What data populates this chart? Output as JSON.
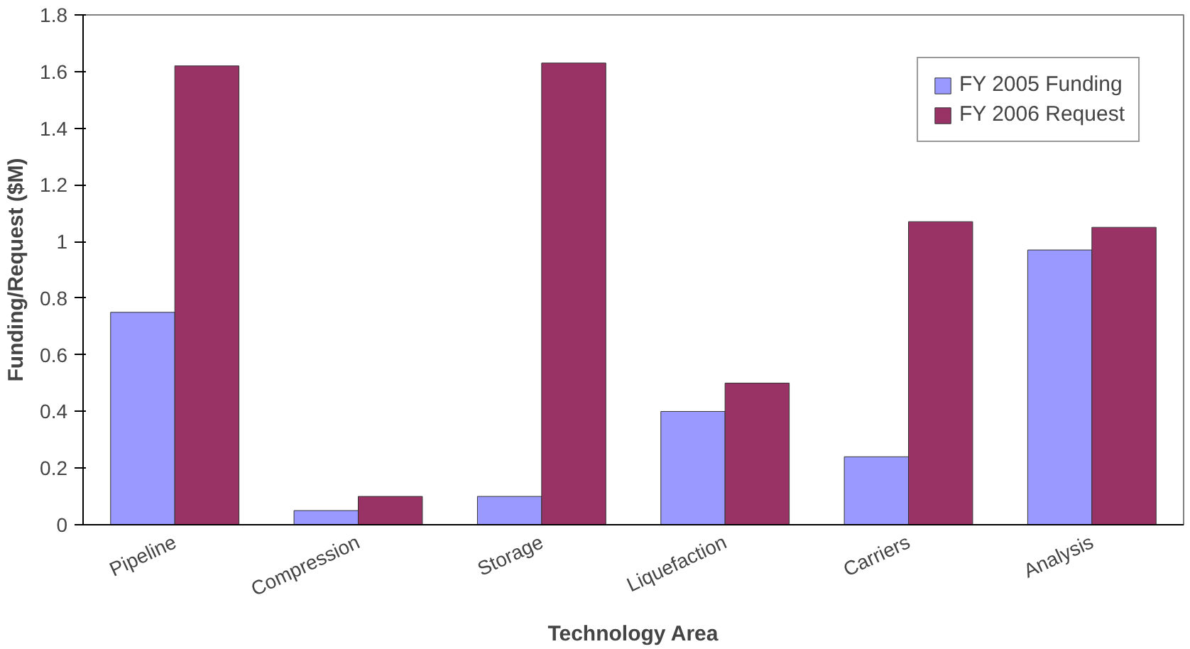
{
  "chart_data": {
    "type": "bar",
    "xlabel": "Technology Area",
    "ylabel": "Funding/Request ($M)",
    "categories": [
      "Pipeline",
      "Compression",
      "Storage",
      "Liquefaction",
      "Carriers",
      "Analysis"
    ],
    "series": [
      {
        "name": "FY 2005 Funding",
        "color": "#9999ff",
        "values": [
          0.75,
          0.05,
          0.1,
          0.4,
          0.24,
          0.97
        ]
      },
      {
        "name": "FY 2006 Request",
        "color": "#993366",
        "values": [
          1.62,
          0.1,
          1.63,
          0.5,
          1.07,
          1.05
        ]
      }
    ],
    "ylim": [
      0,
      1.8
    ],
    "yticks": [
      0,
      0.2,
      0.4,
      0.6,
      0.8,
      1,
      1.2,
      1.4,
      1.6,
      1.8
    ],
    "grid": false,
    "legend": "top right"
  }
}
